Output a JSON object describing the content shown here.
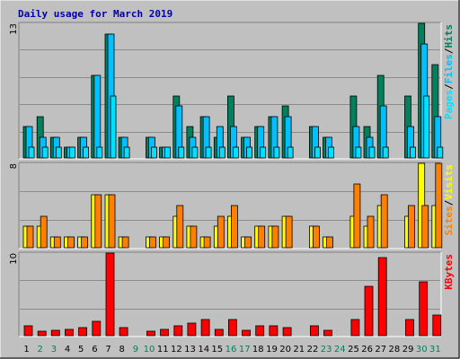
{
  "title": "Daily usage for March 2019",
  "colors": {
    "background": "#c0c0c0",
    "frame_light": "#ffffff",
    "frame_dark": "#808080",
    "title": "#0000aa",
    "hits": "#00805c",
    "files": "#00c0ff",
    "pages": "#00e0ff",
    "visits": "#ffff00",
    "sites": "#ff8000",
    "kbytes": "#ff0000",
    "weekday_label": "#000000",
    "weekend_label": "#00805c",
    "slash": "#000000"
  },
  "chart_data": [
    {
      "type": "bar",
      "panel": "hits-files-pages",
      "scale_max_label": "13",
      "ylim": [
        0,
        13
      ],
      "categories": [
        "1",
        "2",
        "3",
        "4",
        "5",
        "6",
        "7",
        "8",
        "9",
        "10",
        "11",
        "12",
        "13",
        "14",
        "15",
        "16",
        "17",
        "18",
        "19",
        "20",
        "21",
        "22",
        "23",
        "24",
        "25",
        "26",
        "27",
        "28",
        "29",
        "30",
        "31"
      ],
      "legend": [
        "Pages",
        "Files",
        "Hits"
      ],
      "series": [
        {
          "name": "Hits",
          "values": [
            3,
            4,
            2,
            1,
            2,
            8,
            12,
            2,
            0,
            2,
            1,
            6,
            3,
            4,
            2,
            6,
            2,
            3,
            4,
            5,
            0,
            3,
            2,
            0,
            6,
            3,
            8,
            0,
            6,
            13,
            9
          ]
        },
        {
          "name": "Files",
          "values": [
            3,
            2,
            2,
            1,
            2,
            8,
            12,
            2,
            0,
            2,
            1,
            5,
            2,
            4,
            3,
            3,
            2,
            3,
            4,
            4,
            0,
            3,
            2,
            0,
            3,
            2,
            5,
            0,
            3,
            11,
            4
          ]
        },
        {
          "name": "Pages",
          "values": [
            1,
            1,
            1,
            1,
            1,
            1,
            6,
            1,
            0,
            1,
            1,
            1,
            1,
            1,
            1,
            1,
            1,
            1,
            1,
            1,
            0,
            1,
            1,
            0,
            1,
            1,
            1,
            0,
            1,
            6,
            1
          ]
        }
      ]
    },
    {
      "type": "bar",
      "panel": "visits-sites",
      "scale_max_label": "8",
      "ylim": [
        0,
        8
      ],
      "categories": [
        "1",
        "2",
        "3",
        "4",
        "5",
        "6",
        "7",
        "8",
        "9",
        "10",
        "11",
        "12",
        "13",
        "14",
        "15",
        "16",
        "17",
        "18",
        "19",
        "20",
        "21",
        "22",
        "23",
        "24",
        "25",
        "26",
        "27",
        "28",
        "29",
        "30",
        "31"
      ],
      "legend": [
        "Sites",
        "Visits"
      ],
      "series": [
        {
          "name": "Visits",
          "values": [
            2,
            2,
            1,
            1,
            1,
            5,
            5,
            1,
            0,
            1,
            1,
            3,
            2,
            1,
            2,
            3,
            1,
            2,
            2,
            3,
            0,
            2,
            1,
            0,
            3,
            2,
            4,
            0,
            3,
            8,
            4
          ]
        },
        {
          "name": "Sites",
          "values": [
            2,
            3,
            1,
            1,
            1,
            5,
            5,
            1,
            0,
            1,
            1,
            4,
            2,
            1,
            3,
            4,
            1,
            2,
            2,
            3,
            0,
            2,
            1,
            0,
            6,
            3,
            5,
            0,
            4,
            4,
            8
          ]
        }
      ]
    },
    {
      "type": "bar",
      "panel": "kbytes",
      "scale_max_label": "10",
      "ylim": [
        0,
        10
      ],
      "categories": [
        "1",
        "2",
        "3",
        "4",
        "5",
        "6",
        "7",
        "8",
        "9",
        "10",
        "11",
        "12",
        "13",
        "14",
        "15",
        "16",
        "17",
        "18",
        "19",
        "20",
        "21",
        "22",
        "23",
        "24",
        "25",
        "26",
        "27",
        "28",
        "29",
        "30",
        "31"
      ],
      "legend": [
        "KBytes"
      ],
      "series": [
        {
          "name": "KBytes",
          "values": [
            1.2,
            0.5,
            0.6,
            0.8,
            1.0,
            1.7,
            10.0,
            1.0,
            0,
            0.5,
            0.8,
            1.2,
            1.5,
            2.0,
            0.8,
            2.0,
            0.6,
            1.2,
            1.2,
            1.0,
            0,
            1.2,
            0.6,
            0,
            2.0,
            6.0,
            9.5,
            0,
            2.0,
            6.5,
            2.5
          ]
        }
      ]
    }
  ]
}
